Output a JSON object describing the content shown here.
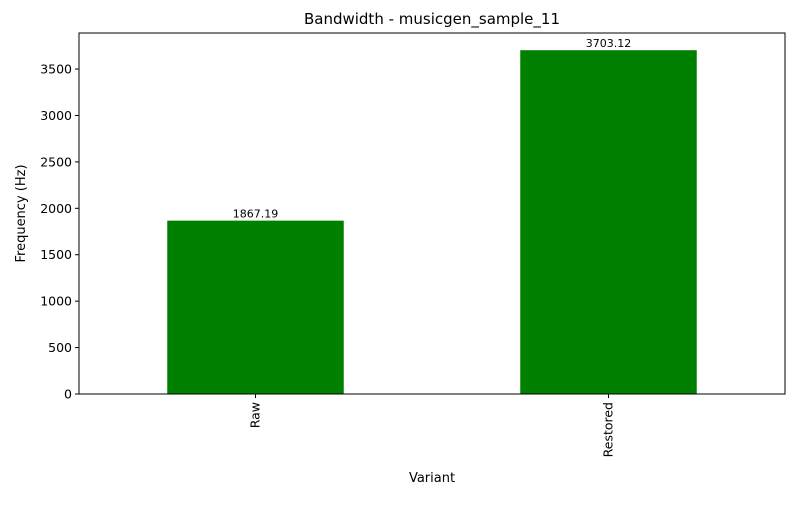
{
  "chart_data": {
    "type": "bar",
    "title": "Bandwidth - musicgen_sample_11",
    "xlabel": "Variant",
    "ylabel": "Frequency (Hz)",
    "categories": [
      "Raw",
      "Restored"
    ],
    "values": [
      1867.19,
      3703.12
    ],
    "value_labels": [
      "1867.19",
      "3703.12"
    ],
    "ylim": [
      0,
      3888.28
    ],
    "yticks": [
      0,
      500,
      1000,
      1500,
      2000,
      2500,
      3000,
      3500
    ],
    "bar_color": "#008000",
    "grid": false,
    "legend": false
  }
}
